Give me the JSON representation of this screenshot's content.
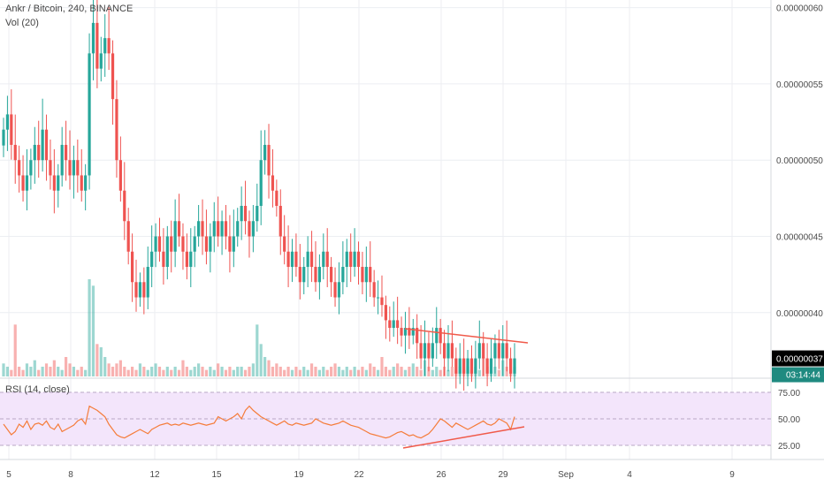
{
  "header": {
    "symbol": "Ankr / Bitcoin, 240, BINANCE",
    "volume_label": "Vol (20)"
  },
  "rsi": {
    "label": "RSI (14, close)",
    "levels": [
      25.0,
      50.0,
      75.0
    ],
    "level_labels": [
      "25.00",
      "50.00",
      "75.00"
    ]
  },
  "price_axis": {
    "ticks": [
      4e-07,
      4.5e-07,
      5e-07,
      5.5e-07,
      6e-07
    ],
    "tick_labels": [
      "0.00000040",
      "0.00000045",
      "0.00000050",
      "0.00000055",
      "0.00000060"
    ],
    "range": [
      3.57e-07,
      6.05e-07
    ],
    "last_price": 3.7e-07,
    "last_price_label": "0.00000037",
    "countdown": "03:14:44",
    "last_price_color": "#26a69a"
  },
  "time_axis": {
    "labels": [
      "5",
      "8",
      "12",
      "15",
      "19",
      "22",
      "26",
      "29",
      "Sep",
      "4",
      "9"
    ]
  },
  "colors": {
    "up": "#26a69a",
    "down": "#ef5350",
    "rsi_line": "#f57c3a",
    "rsi_band": "#f3e5fb",
    "trendline": "#f05a4a",
    "grid": "#eceef2"
  },
  "chart_data": {
    "type": "candlestick",
    "series": [
      {
        "name": "Ankr / Bitcoin",
        "y": [
          5.2e-07,
          5.3e-07,
          5.1e-07,
          5e-07,
          4.9e-07,
          4.8e-07,
          4.9e-07,
          5e-07,
          5.1e-07,
          5e-07,
          5.2e-07,
          5e-07,
          4.9e-07,
          4.8e-07,
          4.9e-07,
          5.1e-07,
          5e-07,
          4.9e-07,
          5e-07,
          4.9e-07,
          4.8e-07,
          4.9e-07,
          5.7e-07,
          5.9e-07,
          5.6e-07,
          5.7e-07,
          5.8e-07,
          5.7e-07,
          5.4e-07,
          5e-07,
          4.8e-07,
          4.6e-07,
          4.4e-07,
          4.2e-07,
          4.1e-07,
          4.2e-07,
          4.1e-07,
          4.3e-07,
          4.4e-07,
          4.5e-07,
          4.4e-07,
          4.3e-07,
          4.5e-07,
          4.4e-07,
          4.6e-07,
          4.5e-07,
          4.4e-07,
          4.3e-07,
          4.4e-07,
          4.5e-07,
          4.6e-07,
          4.5e-07,
          4.4e-07,
          4.5e-07,
          4.6e-07,
          4.5e-07,
          4.6e-07,
          4.5e-07,
          4.4e-07,
          4.5e-07,
          4.6e-07,
          4.7e-07,
          4.6e-07,
          4.5e-07,
          4.6e-07,
          4.7e-07,
          5e-07,
          5.1e-07,
          4.9e-07,
          4.8e-07,
          4.7e-07,
          4.5e-07,
          4.4e-07,
          4.3e-07,
          4.4e-07,
          4.3e-07,
          4.2e-07,
          4.3e-07,
          4.4e-07,
          4.3e-07,
          4.2e-07,
          4.3e-07,
          4.4e-07,
          4.3e-07,
          4.2e-07,
          4.1e-07,
          4.2e-07,
          4.3e-07,
          4.4e-07,
          4.3e-07,
          4.4e-07,
          4.3e-07,
          4.2e-07,
          4.3e-07,
          4.2e-07,
          4.1e-07,
          4.1e-07,
          4.05e-07,
          3.95e-07,
          3.9e-07,
          3.95e-07,
          3.9e-07,
          3.85e-07,
          3.9e-07,
          3.85e-07,
          3.9e-07,
          3.8e-07,
          3.7e-07,
          3.8e-07,
          3.7e-07,
          3.8e-07,
          3.9e-07,
          3.8e-07,
          3.7e-07,
          3.8e-07,
          3.7e-07,
          3.6e-07,
          3.7e-07,
          3.6e-07,
          3.7e-07,
          3.6e-07,
          3.7e-07,
          3.8e-07,
          3.7e-07,
          3.6e-07,
          3.7e-07,
          3.8e-07,
          3.7e-07,
          3.8e-07,
          3.7e-07,
          3.6e-07,
          3.7e-07
        ]
      }
    ],
    "xlabel": "",
    "ylabel": "",
    "ylim": [
      3.57e-07,
      6.05e-07
    ],
    "volume": [
      4,
      3,
      2,
      16,
      3,
      2,
      4,
      3,
      5,
      2,
      3,
      4,
      3,
      5,
      3,
      2,
      6,
      4,
      3,
      2,
      3,
      2,
      30,
      28,
      10,
      9,
      6,
      4,
      3,
      4,
      5,
      3,
      2,
      3,
      2,
      4,
      3,
      2,
      3,
      4,
      3,
      2,
      3,
      2,
      3,
      2,
      5,
      3,
      2,
      3,
      4,
      3,
      2,
      3,
      2,
      4,
      3,
      2,
      3,
      2,
      3,
      3,
      2,
      3,
      4,
      16,
      10,
      6,
      5,
      3,
      4,
      3,
      2,
      3,
      2,
      3,
      2,
      3,
      2,
      4,
      3,
      2,
      3,
      2,
      3,
      4,
      3,
      2,
      3,
      2,
      3,
      2,
      3,
      2,
      4,
      3,
      2,
      6,
      3,
      2,
      3,
      4,
      3,
      2,
      3,
      4,
      3,
      2,
      5,
      3,
      2,
      3,
      2,
      3,
      2,
      3,
      2,
      3,
      2,
      3,
      2,
      3,
      2,
      6,
      3,
      2,
      3,
      2,
      5,
      3,
      2,
      3
    ],
    "rsi": [
      45,
      40,
      35,
      38,
      45,
      42,
      48,
      40,
      45,
      46,
      44,
      48,
      42,
      40,
      45,
      38,
      40,
      42,
      44,
      48,
      50,
      45,
      62,
      60,
      58,
      55,
      52,
      45,
      40,
      35,
      33,
      32,
      34,
      36,
      38,
      40,
      38,
      36,
      40,
      42,
      44,
      45,
      46,
      44,
      45,
      44,
      46,
      45,
      44,
      45,
      46,
      45,
      44,
      45,
      46,
      52,
      50,
      48,
      50,
      52,
      55,
      50,
      58,
      62,
      58,
      55,
      52,
      50,
      48,
      46,
      44,
      46,
      48,
      45,
      44,
      46,
      45,
      44,
      45,
      46,
      50,
      48,
      46,
      45,
      44,
      45,
      46,
      48,
      46,
      44,
      43,
      42,
      40,
      38,
      36,
      35,
      34,
      33,
      32,
      33,
      35,
      37,
      38,
      36,
      34,
      35,
      33,
      32,
      34,
      36,
      40,
      45,
      50,
      48,
      45,
      42,
      46,
      44,
      42,
      40,
      42,
      44,
      46,
      48,
      45,
      44,
      46,
      50,
      48,
      46,
      40,
      52
    ]
  }
}
